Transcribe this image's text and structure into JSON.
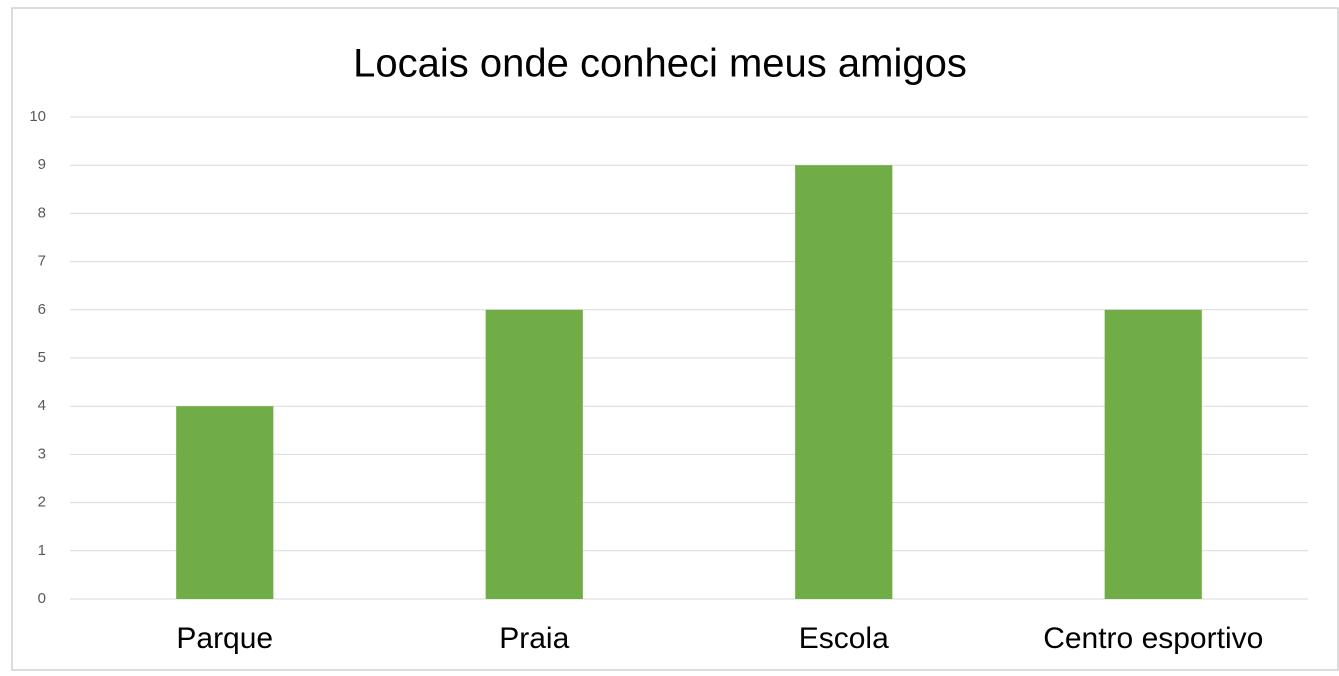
{
  "chart_data": {
    "type": "bar",
    "title": "Locais onde conheci meus amigos",
    "categories": [
      "Parque",
      "Praia",
      "Escola",
      "Centro esportivo"
    ],
    "values": [
      4,
      6,
      9,
      6
    ],
    "color": "#70ad47",
    "ylim": [
      0,
      10
    ],
    "yticks": [
      0,
      1,
      2,
      3,
      4,
      5,
      6,
      7,
      8,
      9,
      10
    ],
    "grid": true
  }
}
